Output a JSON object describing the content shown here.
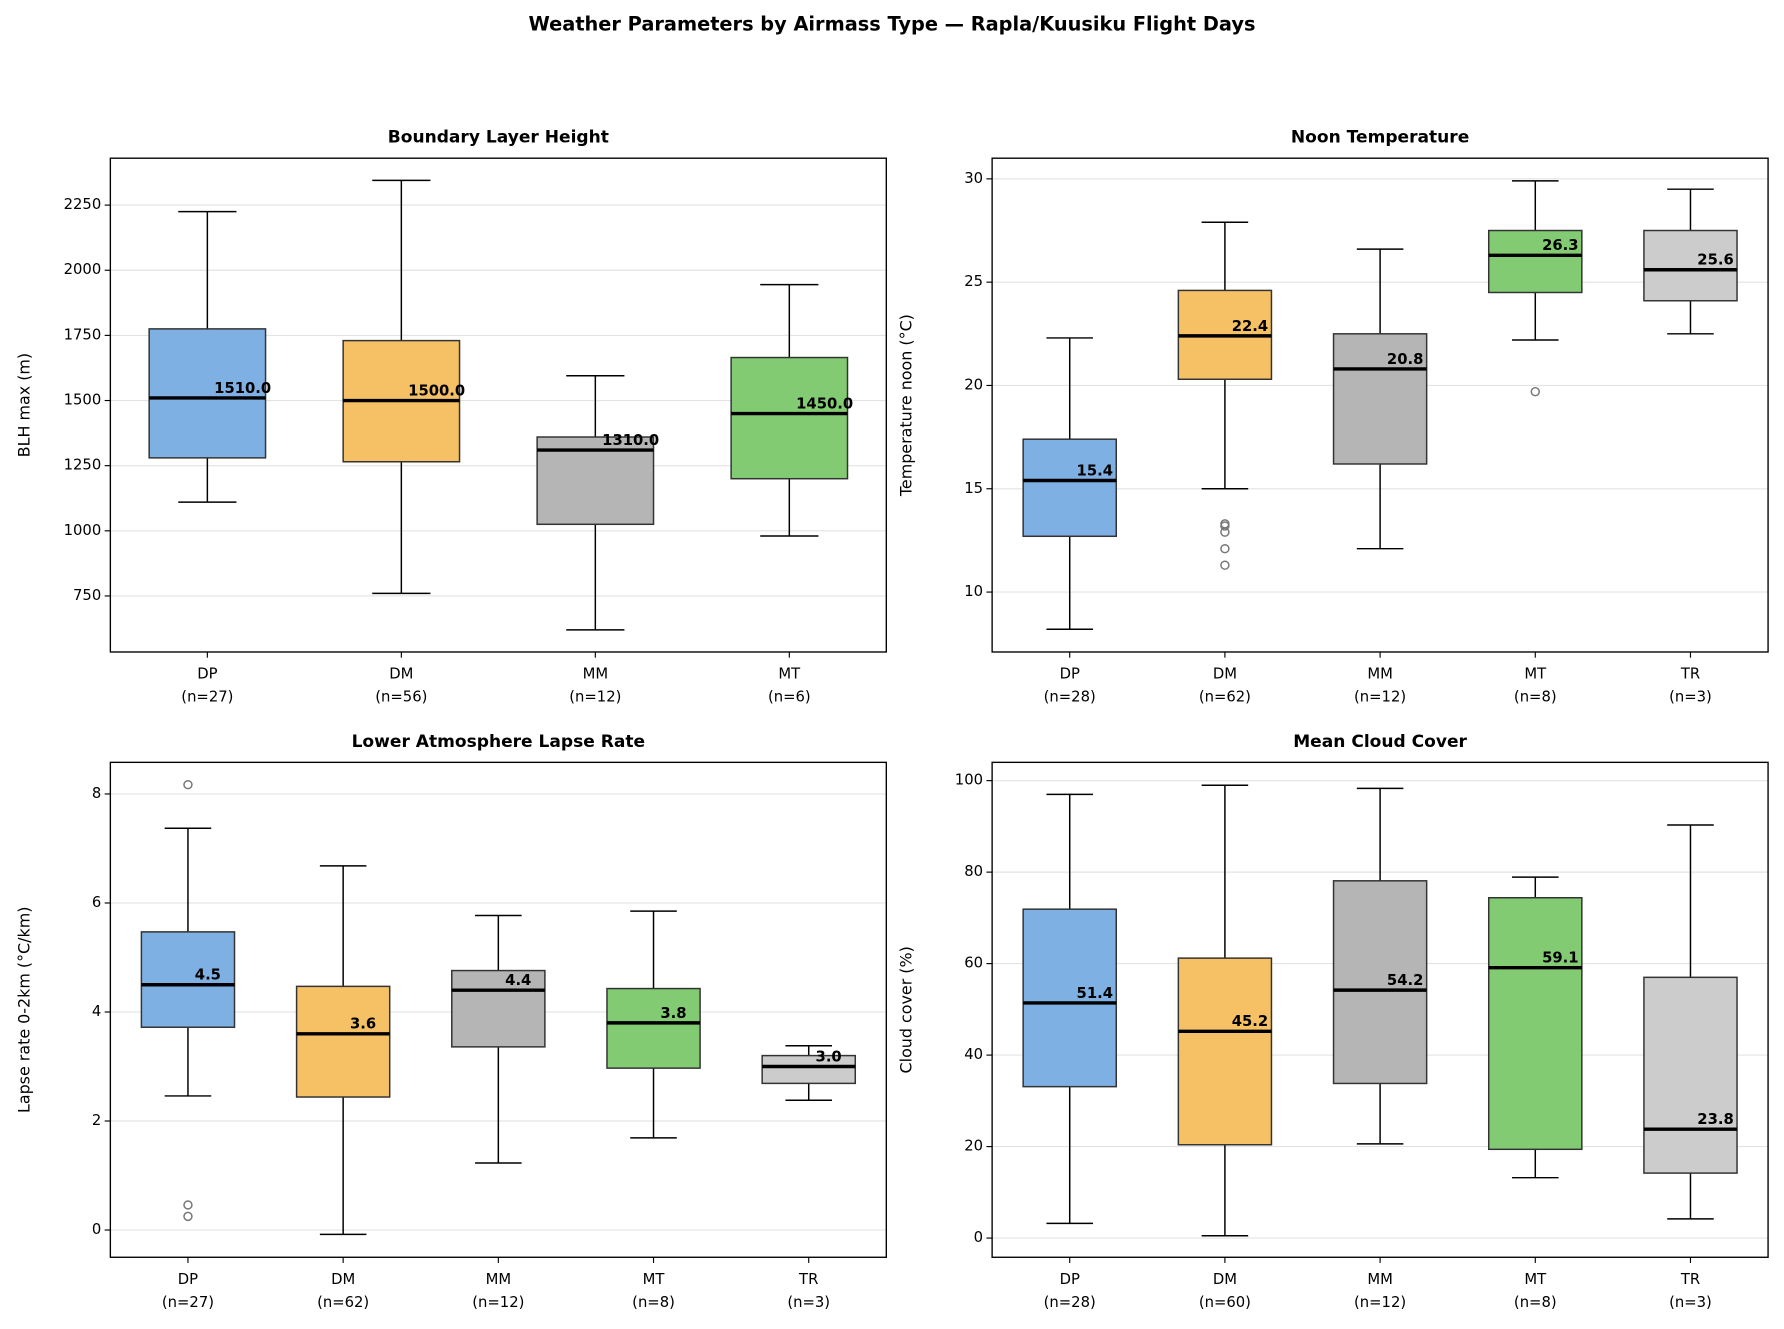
{
  "title": "Weather Parameters by Airmass Type — Rapla/Kuusiku Flight Days",
  "chart_data": [
    {
      "type": "box",
      "title": "Boundary Layer Height",
      "y_label": "BLH max (m)",
      "ylim": [
        535,
        2430
      ],
      "yticks": [
        750,
        1000,
        1250,
        1500,
        1750,
        2000,
        2250
      ],
      "grid": true,
      "boxes": [
        {
          "category": "DP",
          "n_label": "(n=27)",
          "color": "#7eb0e3",
          "whislo": 1110,
          "q1": 1280,
          "med": 1510,
          "med_label": "1510.0",
          "q3": 1775,
          "whishi": 2225,
          "fliers": []
        },
        {
          "category": "DM",
          "n_label": "(n=56)",
          "color": "#f6c165",
          "whislo": 760,
          "q1": 1265,
          "med": 1500,
          "med_label": "1500.0",
          "q3": 1730,
          "whishi": 2345,
          "fliers": []
        },
        {
          "category": "MM",
          "n_label": "(n=12)",
          "color": "#b5b5b5",
          "whislo": 620,
          "q1": 1025,
          "med": 1310,
          "med_label": "1310.0",
          "q3": 1360,
          "whishi": 1595,
          "fliers": []
        },
        {
          "category": "MT",
          "n_label": "(n=6)",
          "color": "#82cb73",
          "whislo": 980,
          "q1": 1200,
          "med": 1450,
          "med_label": "1450.0",
          "q3": 1665,
          "whishi": 1945,
          "fliers": []
        }
      ]
    },
    {
      "type": "box",
      "title": "Noon Temperature",
      "y_label": "Temperature noon (°C)",
      "ylim": [
        7.1,
        31.0
      ],
      "yticks": [
        10,
        15,
        20,
        25,
        30
      ],
      "grid": true,
      "boxes": [
        {
          "category": "DP",
          "n_label": "(n=28)",
          "color": "#7eb0e3",
          "whislo": 8.2,
          "q1": 12.7,
          "med": 15.4,
          "q3": 17.4,
          "whishi": 22.3,
          "fliers": []
        },
        {
          "category": "DM",
          "n_label": "(n=62)",
          "color": "#f6c165",
          "whislo": 15.0,
          "q1": 20.3,
          "med": 22.4,
          "q3": 24.6,
          "whishi": 27.9,
          "fliers": [
            13.3,
            13.2,
            12.9,
            12.1,
            11.3
          ]
        },
        {
          "category": "MM",
          "n_label": "(n=12)",
          "color": "#b5b5b5",
          "whislo": 12.1,
          "q1": 16.2,
          "med": 20.8,
          "q3": 22.5,
          "whishi": 26.6,
          "fliers": []
        },
        {
          "category": "MT",
          "n_label": "(n=8)",
          "color": "#82cb73",
          "whislo": 22.2,
          "q1": 24.5,
          "med": 26.3,
          "q3": 27.5,
          "whishi": 29.9,
          "fliers": [
            19.7
          ]
        },
        {
          "category": "TR",
          "n_label": "(n=3)",
          "color": "#cccccc",
          "whislo": 22.5,
          "q1": 24.1,
          "med": 25.6,
          "q3": 27.5,
          "whishi": 29.5,
          "fliers": []
        }
      ]
    },
    {
      "type": "box",
      "title": "Lower Atmosphere Lapse Rate",
      "y_label": "Lapse rate 0-2km (°C/km)",
      "ylim": [
        -0.5,
        8.58
      ],
      "yticks": [
        0,
        2,
        4,
        6,
        8
      ],
      "grid": true,
      "boxes": [
        {
          "category": "DP",
          "n_label": "(n=27)",
          "color": "#7eb0e3",
          "whislo": 2.46,
          "q1": 3.72,
          "med": 4.5,
          "q3": 5.47,
          "whishi": 7.37,
          "fliers": [
            8.17,
            0.46,
            0.25
          ]
        },
        {
          "category": "DM",
          "n_label": "(n=62)",
          "color": "#f6c165",
          "whislo": -0.08,
          "q1": 2.44,
          "med": 3.6,
          "q3": 4.47,
          "whishi": 6.68,
          "fliers": []
        },
        {
          "category": "MM",
          "n_label": "(n=12)",
          "color": "#b5b5b5",
          "whislo": 1.23,
          "q1": 3.36,
          "med": 4.4,
          "q3": 4.76,
          "whishi": 5.77,
          "fliers": []
        },
        {
          "category": "MT",
          "n_label": "(n=8)",
          "color": "#82cb73",
          "whislo": 1.69,
          "q1": 2.97,
          "med": 3.8,
          "q3": 4.43,
          "whishi": 5.85,
          "fliers": []
        },
        {
          "category": "TR",
          "n_label": "(n=3)",
          "color": "#cccccc",
          "whislo": 2.38,
          "q1": 2.69,
          "med": 3,
          "med_label": "3.0",
          "q3": 3.2,
          "whishi": 3.38,
          "fliers": []
        }
      ]
    },
    {
      "type": "box",
      "title": "Mean Cloud Cover",
      "y_label": "Cloud cover (%)",
      "ylim": [
        -4.2,
        104.0
      ],
      "yticks": [
        0,
        20,
        40,
        60,
        80,
        100
      ],
      "grid": true,
      "boxes": [
        {
          "category": "DP",
          "n_label": "(n=28)",
          "color": "#7eb0e3",
          "whislo": 3.2,
          "q1": 33.1,
          "med": 51.4,
          "q3": 71.9,
          "whishi": 97.0,
          "fliers": []
        },
        {
          "category": "DM",
          "n_label": "(n=60)",
          "color": "#f6c165",
          "whislo": 0.5,
          "q1": 20.4,
          "med": 45.2,
          "q3": 61.2,
          "whishi": 99.0,
          "fliers": []
        },
        {
          "category": "MM",
          "n_label": "(n=12)",
          "color": "#b5b5b5",
          "whislo": 20.6,
          "q1": 33.8,
          "med": 54.2,
          "q3": 78.1,
          "whishi": 98.3,
          "fliers": []
        },
        {
          "category": "MT",
          "n_label": "(n=8)",
          "color": "#82cb73",
          "whislo": 13.2,
          "q1": 19.4,
          "med": 59.1,
          "q3": 74.4,
          "whishi": 78.9,
          "fliers": []
        },
        {
          "category": "TR",
          "n_label": "(n=3)",
          "color": "#cccccc",
          "whislo": 4.2,
          "q1": 14.2,
          "med": 23.8,
          "q3": 57.0,
          "whishi": 90.3,
          "fliers": []
        }
      ]
    }
  ]
}
